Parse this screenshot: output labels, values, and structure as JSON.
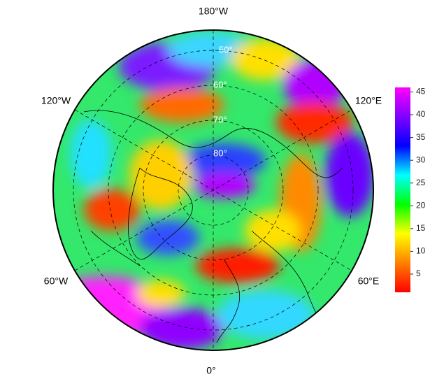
{
  "map": {
    "longitude_labels": [
      "180°W",
      "120°W",
      "120°E",
      "60°W",
      "60°E",
      "0°"
    ],
    "latitude_labels": [
      "50°",
      "60°",
      "70°",
      "80°"
    ]
  },
  "colorbar": {
    "range": [
      1,
      46
    ],
    "ticks": [
      5,
      10,
      15,
      20,
      25,
      30,
      35,
      40,
      45
    ],
    "colors": [
      "#ff0000",
      "#ff8000",
      "#ffff00",
      "#00ff00",
      "#00ffff",
      "#0000ff",
      "#8000ff",
      "#ff00ff"
    ]
  }
}
